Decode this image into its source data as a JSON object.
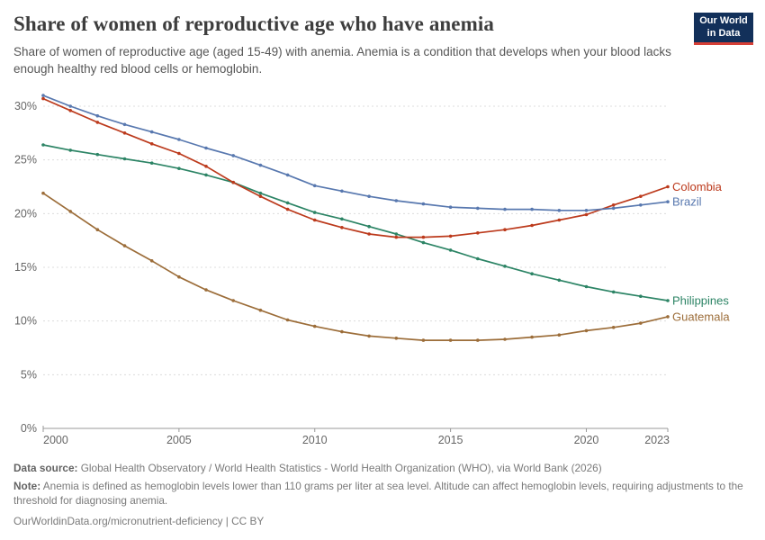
{
  "header": {
    "title": "Share of women of reproductive age who have anemia",
    "subtitle": "Share of women of reproductive age (aged 15-49) with anemia. Anemia is a condition that develops when your blood lacks enough healthy red blood cells or hemoglobin."
  },
  "logo": {
    "line1": "Our World",
    "line2": "in Data"
  },
  "footer": {
    "data_source_label": "Data source:",
    "data_source_text": " Global Health Observatory / World Health Statistics - World Health Organization (WHO), via World Bank (2026)",
    "note_label": "Note:",
    "note_text": " Anemia is defined as hemoglobin levels lower than 110 grams per liter at sea level. Altitude can affect hemoglobin levels, requiring adjustments to the threshold for diagnosing anemia.",
    "citation": "OurWorldinData.org/micronutrient-deficiency | CC BY"
  },
  "chart_data": {
    "type": "line",
    "title": "Share of women of reproductive age who have anemia",
    "xlabel": "",
    "ylabel": "",
    "x": [
      2000,
      2001,
      2002,
      2003,
      2004,
      2005,
      2006,
      2007,
      2008,
      2009,
      2010,
      2011,
      2012,
      2013,
      2014,
      2015,
      2016,
      2017,
      2018,
      2019,
      2020,
      2021,
      2022,
      2023
    ],
    "series": [
      {
        "name": "Philippines",
        "color": "#2c8465",
        "values": [
          26.4,
          25.9,
          25.5,
          25.1,
          24.7,
          24.2,
          23.6,
          22.9,
          21.9,
          21.0,
          20.1,
          19.5,
          18.8,
          18.1,
          17.3,
          16.6,
          15.8,
          15.1,
          14.4,
          13.8,
          13.2,
          12.7,
          12.3,
          11.9
        ]
      },
      {
        "name": "Guatemala",
        "color": "#9c6d39",
        "values": [
          21.9,
          20.2,
          18.5,
          17.0,
          15.6,
          14.1,
          12.9,
          11.9,
          11.0,
          10.1,
          9.5,
          9.0,
          8.6,
          8.4,
          8.2,
          8.2,
          8.2,
          8.3,
          8.5,
          8.7,
          9.1,
          9.4,
          9.8,
          10.4
        ]
      },
      {
        "name": "Colombia",
        "color": "#bc3a1c",
        "values": [
          30.7,
          29.6,
          28.5,
          27.5,
          26.5,
          25.6,
          24.4,
          22.9,
          21.6,
          20.4,
          19.4,
          18.7,
          18.1,
          17.8,
          17.8,
          17.9,
          18.2,
          18.5,
          18.9,
          19.4,
          19.9,
          20.8,
          21.6,
          22.5
        ]
      },
      {
        "name": "Brazil",
        "color": "#5878af",
        "values": [
          31.0,
          30.0,
          29.1,
          28.3,
          27.6,
          26.9,
          26.1,
          25.4,
          24.5,
          23.6,
          22.6,
          22.1,
          21.6,
          21.2,
          20.9,
          20.6,
          20.5,
          20.4,
          20.4,
          20.3,
          20.3,
          20.5,
          20.8,
          21.1
        ]
      }
    ],
    "ylim": [
      0,
      31
    ],
    "ytick_values": [
      0,
      5,
      10,
      15,
      20,
      25,
      30
    ],
    "ytick_labels": [
      "0%",
      "5%",
      "10%",
      "15%",
      "20%",
      "25%",
      "30%"
    ],
    "xtick_values": [
      2000,
      2005,
      2010,
      2015,
      2020,
      2023
    ],
    "xtick_labels": [
      "2000",
      "2005",
      "2010",
      "2015",
      "2020",
      "2023"
    ],
    "grid": true,
    "legend_position": "end-of-line-labels"
  }
}
